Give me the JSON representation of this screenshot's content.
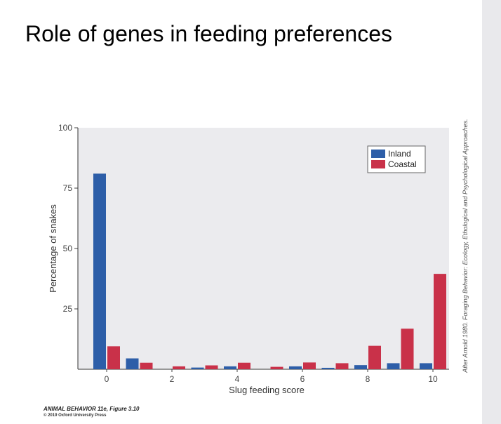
{
  "slide": {
    "title": "Role of genes in feeding preferences"
  },
  "figure": {
    "credit": "ANIMAL BEHAVIOR 11e, Figure 3.10",
    "copyright": "© 2019 Oxford University Press",
    "side_credit": "After Arnold 1980. Foraging Behavior: Ecology, Ethological and Psychological Approaches."
  },
  "colors": {
    "inland": "#2d5ea8",
    "coastal": "#c93149",
    "plot_bg": "#ebebee"
  },
  "chart_data": {
    "type": "bar",
    "title": "",
    "xlabel": "Slug feeding score",
    "ylabel": "Percentage of snakes",
    "categories": [
      "0",
      "1",
      "2",
      "3",
      "4",
      "5",
      "6",
      "7",
      "8",
      "9",
      "10"
    ],
    "x_tick_labels": [
      "0",
      "2",
      "4",
      "6",
      "8",
      "10"
    ],
    "y_ticks": [
      25,
      50,
      75,
      100
    ],
    "ylim": [
      0,
      100
    ],
    "legend_position": "top-right",
    "series": [
      {
        "name": "Inland",
        "values": [
          81,
          4.5,
          0,
          0.7,
          1.2,
          0,
          1.2,
          0.6,
          1.7,
          2.5,
          2.5
        ]
      },
      {
        "name": "Coastal",
        "values": [
          9.5,
          2.7,
          1.2,
          1.6,
          2.7,
          1.0,
          2.8,
          2.5,
          9.7,
          16.8,
          39.5
        ]
      }
    ]
  }
}
